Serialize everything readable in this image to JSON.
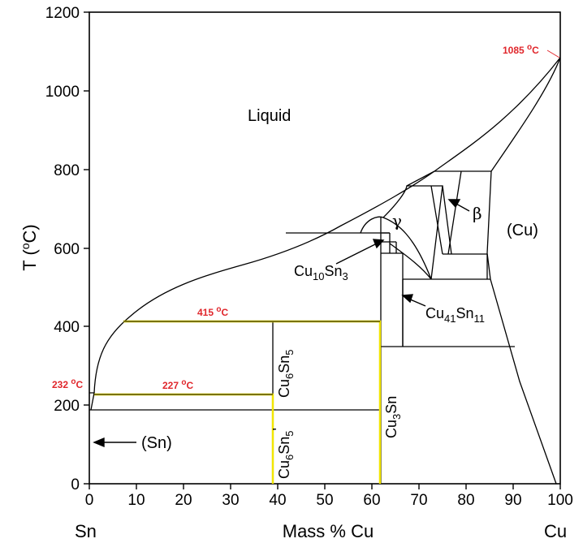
{
  "diagram": {
    "title": "",
    "y_axis": {
      "label_main": "T (",
      "label_sup": "o",
      "label_tail": "C)",
      "ticks": [
        "0",
        "200",
        "400",
        "600",
        "800",
        "1000",
        "1200"
      ],
      "range": [
        0,
        1200
      ]
    },
    "x_axis": {
      "label": "Mass % Cu",
      "left_end": "Sn",
      "right_end": "Cu",
      "ticks": [
        "0",
        "10",
        "20",
        "30",
        "40",
        "50",
        "60",
        "70",
        "80",
        "90",
        "100"
      ],
      "range": [
        0,
        100
      ]
    },
    "regions": {
      "liquid": "Liquid",
      "cu": "(Cu)",
      "sn": "(Sn)",
      "gamma": "γ",
      "beta": "β"
    },
    "phases": {
      "cu6sn5": {
        "a": "Cu",
        "b": "6",
        "c": "Sn",
        "d": "5"
      },
      "cu6sn5_prime": {
        "a": "Cu",
        "b": "6",
        "c": "Sn",
        "d": "5",
        "e": "'"
      },
      "cu3sn": {
        "a": "Cu",
        "b": "3",
        "c": "Sn"
      },
      "cu10sn3": {
        "a": "Cu",
        "b": "10",
        "c": "Sn",
        "d": "3"
      },
      "cu41sn11": {
        "a": "Cu",
        "b": "41",
        "c": "Sn",
        "d": "11"
      }
    },
    "temperatures": {
      "cu_melt": {
        "value": "1085 ",
        "sup": "o",
        "unit": "C"
      },
      "sn_melt": {
        "value": "232 ",
        "sup": "o",
        "unit": "C"
      },
      "eutectic_227": {
        "value": "227 ",
        "sup": "o",
        "unit": "C"
      },
      "peritectic_415": {
        "value": "415 ",
        "sup": "o",
        "unit": "C"
      }
    },
    "colors": {
      "temperature_label": "#e0262b",
      "highlight_line": "#f2e600",
      "highlight_shadow": "#8a8000",
      "phase_lines": "#000000"
    }
  }
}
